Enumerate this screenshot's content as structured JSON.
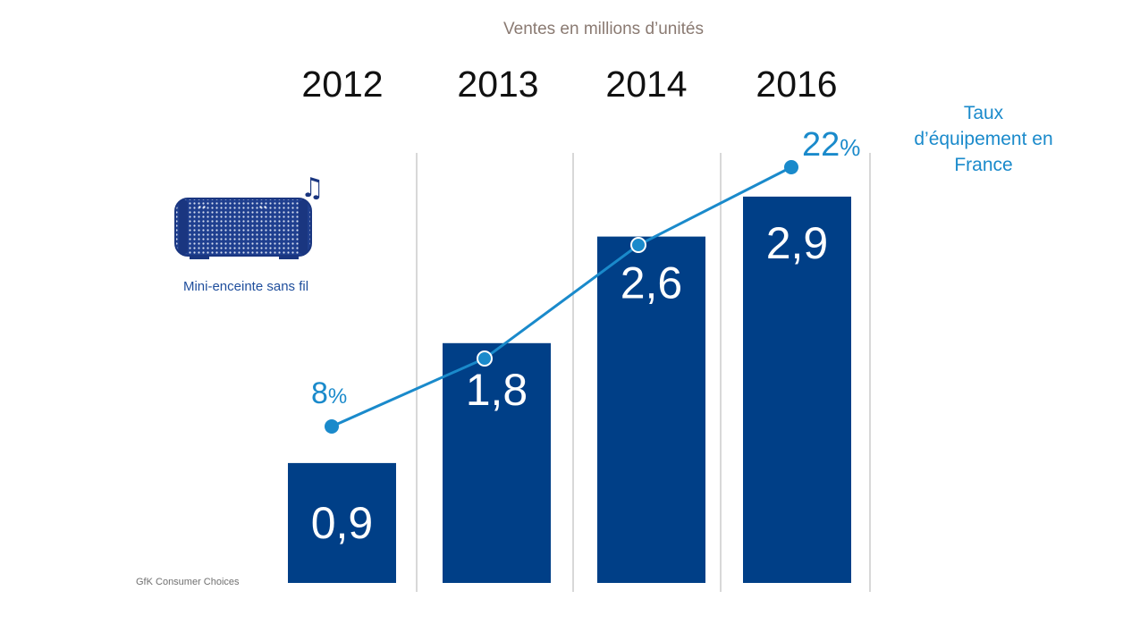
{
  "chart_data": {
    "type": "bar",
    "title": "Ventes en millions d’unités",
    "categories": [
      "2012",
      "2013",
      "2014",
      "2016"
    ],
    "series": [
      {
        "name": "Ventes en millions d’unités",
        "type": "bar",
        "values": [
          0.9,
          1.8,
          2.6,
          2.9
        ],
        "labels": [
          "0,9",
          "1,8",
          "2,6",
          "2,9"
        ]
      },
      {
        "name": "Taux d’équipement en France",
        "type": "line",
        "unit": "%",
        "values": [
          8,
          null,
          null,
          22
        ],
        "labels": [
          "8",
          "22"
        ]
      }
    ],
    "product_label": "Mini-enceinte sans fil",
    "line_title": "Taux d’équipement en France",
    "source": "GfK Consumer Choices",
    "colors": {
      "bar": "#003f87",
      "line": "#1a8acb",
      "subtitle": "#8a7a72",
      "separator": "#cccccc"
    }
  }
}
